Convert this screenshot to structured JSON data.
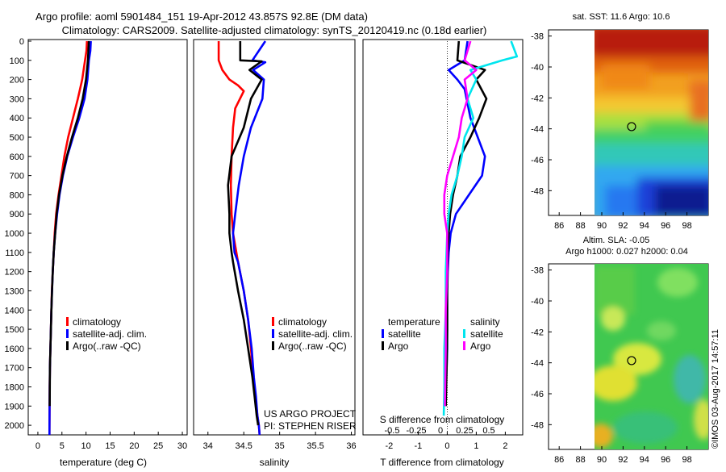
{
  "header": {
    "title_line1": "Argo profile: aoml 5901484_151 19-Apr-2012 43.857S 92.8E (DM data)",
    "title_line2": "Climatology: CARS2009. Satellite-adjusted climatology: synTS_20120419.nc (0.18d earlier)"
  },
  "colors": {
    "climatology": "#ff0000",
    "satellite": "#0000ff",
    "argo": "#000000",
    "salinity_satellite": "#00e5ee",
    "salinity_argo": "#ff00ff"
  },
  "chart_data": [
    {
      "type": "line",
      "panel": "temperature",
      "xlabel": "temperature (deg C)",
      "ylabel": "depth",
      "xlim": [
        -2,
        31
      ],
      "ylim": [
        2050,
        0
      ],
      "xticks": [
        0,
        5,
        10,
        15,
        20,
        25,
        30
      ],
      "yticks": [
        0,
        100,
        200,
        300,
        400,
        500,
        600,
        700,
        800,
        900,
        1000,
        1100,
        1200,
        1300,
        1400,
        1500,
        1600,
        1700,
        1800,
        1900,
        2000
      ],
      "legend": [
        "climatology",
        "satellite-adj. clim.",
        "Argo(..raw -QC)"
      ],
      "series": [
        {
          "name": "climatology",
          "color": "#ff0000",
          "x": [
            10.2,
            10.1,
            9.8,
            9.2,
            8.3,
            7.3,
            6.3,
            5.5,
            4.9,
            4.3,
            3.8,
            3.5,
            3.3,
            3.1,
            2.9,
            2.8,
            2.7,
            2.6,
            2.5,
            2.45,
            2.4
          ],
          "y": [
            0,
            50,
            100,
            200,
            300,
            400,
            500,
            600,
            700,
            800,
            900,
            1000,
            1100,
            1200,
            1300,
            1400,
            1500,
            1600,
            1700,
            1800,
            2050
          ]
        },
        {
          "name": "satellite-adj. clim.",
          "color": "#0000ff",
          "x": [
            11.0,
            10.9,
            10.6,
            10.3,
            9.7,
            8.6,
            7.3,
            6.1,
            5.2,
            4.5,
            4.0,
            3.6,
            3.3,
            3.1,
            2.95,
            2.8,
            2.7,
            2.6,
            2.5,
            2.45,
            2.4
          ],
          "y": [
            0,
            50,
            100,
            200,
            300,
            400,
            500,
            600,
            700,
            800,
            900,
            1000,
            1100,
            1200,
            1300,
            1400,
            1500,
            1600,
            1700,
            1800,
            2050
          ]
        },
        {
          "name": "Argo(..raw -QC)",
          "color": "#000000",
          "x": [
            10.6,
            10.5,
            10.4,
            10.0,
            9.3,
            8.3,
            7.1,
            6.0,
            5.1,
            4.4,
            3.9,
            3.6,
            3.3,
            3.1,
            2.95,
            2.8,
            2.7,
            2.6,
            2.5,
            2.45
          ],
          "y": [
            0,
            50,
            100,
            200,
            300,
            400,
            500,
            600,
            700,
            800,
            900,
            1000,
            1100,
            1200,
            1300,
            1400,
            1500,
            1600,
            1700,
            1900
          ]
        }
      ]
    },
    {
      "type": "line",
      "panel": "salinity",
      "xlabel": "salinity",
      "ylabel": "depth",
      "xlim": [
        33.8,
        36.05
      ],
      "ylim": [
        2050,
        0
      ],
      "xticks": [
        34,
        34.5,
        35,
        35.5,
        36
      ],
      "legend": [
        "climatology",
        "satellite-adj. clim.",
        "Argo(..raw -QC)"
      ],
      "series": [
        {
          "name": "climatology",
          "color": "#ff0000",
          "x": [
            34.15,
            34.15,
            34.2,
            34.3,
            34.42,
            34.5,
            34.38,
            34.35,
            34.33,
            34.32,
            34.33,
            34.35,
            34.42,
            34.5,
            34.56,
            34.6,
            34.63,
            34.66,
            34.69,
            34.71,
            34.72
          ],
          "y": [
            0,
            100,
            150,
            200,
            230,
            260,
            350,
            450,
            600,
            750,
            900,
            1000,
            1150,
            1300,
            1450,
            1600,
            1750,
            1850,
            1950,
            2000,
            2050
          ]
        },
        {
          "name": "satellite-adj. clim.",
          "color": "#0000ff",
          "x": [
            34.8,
            34.62,
            34.8,
            34.63,
            34.78,
            34.76,
            34.6,
            34.5,
            34.43,
            34.38,
            34.35,
            34.37,
            34.42,
            34.5,
            34.56,
            34.61,
            34.64,
            34.67,
            34.69,
            34.71,
            34.72
          ],
          "y": [
            0,
            100,
            110,
            150,
            200,
            300,
            450,
            600,
            750,
            900,
            1000,
            1100,
            1150,
            1300,
            1450,
            1600,
            1750,
            1850,
            1950,
            2000,
            2050
          ]
        },
        {
          "name": "Argo(..raw -QC)",
          "color": "#000000",
          "x": [
            34.45,
            34.45,
            34.75,
            34.58,
            34.75,
            34.6,
            34.5,
            34.33,
            34.28,
            34.3,
            34.3,
            34.33,
            34.35,
            34.42,
            34.5,
            34.56,
            34.62,
            34.65,
            34.68,
            34.7
          ],
          "y": [
            0,
            100,
            105,
            150,
            200,
            300,
            450,
            600,
            750,
            900,
            1000,
            1100,
            1150,
            1300,
            1450,
            1600,
            1750,
            1850,
            1950,
            2000
          ]
        }
      ]
    },
    {
      "type": "line",
      "panel": "difference",
      "xlabel": "T difference from climatology",
      "x2label": "S difference from climatology",
      "xlim": [
        -2.9,
        2.6
      ],
      "ylim": [
        2050,
        0
      ],
      "xticks": [
        -2,
        -1,
        0,
        1,
        2
      ],
      "x2ticks": [
        -0.5,
        -0.25,
        0,
        0.25,
        0.5
      ],
      "legend_groups": [
        "temperature",
        "salinity"
      ],
      "legend": [
        "satellite",
        "Argo",
        "satellite",
        "Argo"
      ],
      "series": [
        {
          "name": "temperature satellite",
          "color": "#0000ff",
          "x": [
            0.7,
            0.6,
            0.05,
            0.35,
            0.6,
            0.8,
            1.05,
            1.3,
            1.2,
            0.75,
            0.3,
            0.12,
            0.05,
            0.02,
            0.0,
            0.0,
            0.0,
            -0.02,
            -0.05,
            -0.1
          ],
          "y": [
            0,
            100,
            150,
            200,
            250,
            400,
            500,
            600,
            700,
            800,
            900,
            1000,
            1100,
            1200,
            1300,
            1500,
            1600,
            1700,
            1800,
            1900
          ]
        },
        {
          "name": "temperature Argo",
          "color": "#000000",
          "x": [
            0.4,
            0.35,
            1.3,
            1.0,
            1.35,
            1.1,
            0.8,
            0.45,
            0.35,
            0.2,
            0.1,
            0.05,
            0.02,
            0.0,
            0.0,
            -0.02,
            -0.05
          ],
          "y": [
            0,
            100,
            150,
            200,
            300,
            400,
            500,
            600,
            700,
            800,
            900,
            1000,
            1100,
            1300,
            1500,
            1700,
            1900
          ]
        },
        {
          "name": "salinity satellite",
          "color": "#00e5ee",
          "x": [
            2.2,
            2.4,
            1.9,
            0.8,
            1.0,
            0.7,
            0.9,
            0.6,
            0.5,
            0.35,
            0.15,
            0.05,
            0.0,
            -0.05,
            -0.05,
            -0.1,
            -0.1,
            -0.12
          ],
          "y": [
            0,
            80,
            100,
            150,
            200,
            300,
            400,
            500,
            600,
            700,
            800,
            900,
            1000,
            1200,
            1400,
            1600,
            1800,
            1950
          ]
        },
        {
          "name": "salinity Argo",
          "color": "#ff00ff",
          "x": [
            0.8,
            0.6,
            1.0,
            0.6,
            0.7,
            0.5,
            0.4,
            0.2,
            0.0,
            -0.1,
            -0.1,
            0.0,
            0.0,
            -0.05,
            -0.05,
            -0.08
          ],
          "y": [
            0,
            100,
            150,
            200,
            300,
            400,
            500,
            600,
            700,
            800,
            900,
            1000,
            1200,
            1400,
            1600,
            1900
          ]
        }
      ]
    },
    {
      "type": "heatmap",
      "panel": "sst_map",
      "title": "sat. SST: 11.6 Argo: 10.6",
      "xlim": [
        85,
        100
      ],
      "ylim": [
        -49.6,
        -37.6
      ],
      "xticks": [
        86,
        88,
        90,
        92,
        94,
        96,
        98
      ],
      "yticks": [
        -38,
        -40,
        -42,
        -44,
        -46,
        -48
      ],
      "data_xlim": [
        90,
        99.7
      ],
      "argo_position": {
        "lon": 92.8,
        "lat": -43.857
      }
    },
    {
      "type": "heatmap",
      "panel": "sla_map",
      "title_line1": "Altim. SLA: -0.05",
      "title_line2": "Argo h1000: 0.027 h2000: 0.04",
      "xlim": [
        85,
        100
      ],
      "ylim": [
        -49.6,
        -37.6
      ],
      "xticks": [
        86,
        88,
        90,
        92,
        94,
        96,
        98
      ],
      "yticks": [
        -38,
        -40,
        -42,
        -44,
        -46,
        -48
      ],
      "data_xlim": [
        90,
        99.7
      ],
      "argo_position": {
        "lon": 92.8,
        "lat": -43.857
      }
    }
  ],
  "legends": {
    "temp": [
      "climatology",
      "satellite-adj. clim.",
      "Argo(..raw -QC)"
    ],
    "sal": [
      "climatology",
      "satellite-adj. clim.",
      "Argo(..raw -QC)"
    ],
    "diff_headers": [
      "temperature",
      "salinity"
    ],
    "diff_items": [
      "satellite",
      "Argo",
      "satellite",
      "Argo"
    ]
  },
  "credits": {
    "project": "US ARGO PROJECT",
    "pi": "PI: STEPHEN RISER",
    "imos": "©IMOS 03-Aug-2017 14:57:11"
  }
}
